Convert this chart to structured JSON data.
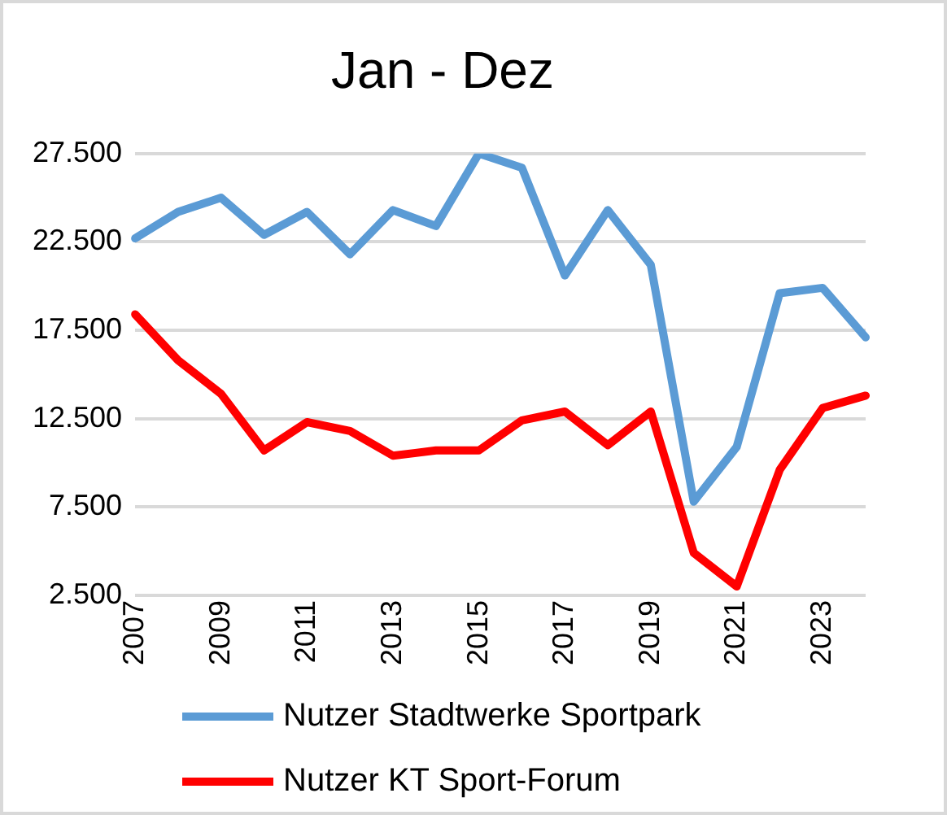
{
  "chart_data": {
    "type": "line",
    "title": "Jan - Dez",
    "categories": [
      "2007",
      null,
      "2009",
      null,
      "2011",
      null,
      "2013",
      null,
      "2015",
      null,
      "2017",
      null,
      "2019",
      null,
      "2021",
      null,
      "2023",
      null
    ],
    "series": [
      {
        "name": "Nutzer Stadtwerke Sportpark",
        "color": "#5b9bd5",
        "values": [
          22700,
          24200,
          25000,
          22900,
          24200,
          21800,
          24300,
          23400,
          27500,
          26700,
          20600,
          24300,
          21200,
          7800,
          10900,
          19600,
          19900,
          17100
        ]
      },
      {
        "name": "Nutzer KT Sport-Forum",
        "color": "#ff0000",
        "values": [
          18400,
          15800,
          13900,
          10700,
          12300,
          11800,
          10400,
          10700,
          10700,
          12400,
          12900,
          11000,
          12900,
          4900,
          3000,
          9600,
          13100,
          13800
        ]
      }
    ],
    "ylim": [
      2500,
      27500
    ],
    "yticks": [
      {
        "value": 2500,
        "label": "2.500"
      },
      {
        "value": 7500,
        "label": "7.500"
      },
      {
        "value": 12500,
        "label": "12.500"
      },
      {
        "value": 17500,
        "label": "17.500"
      },
      {
        "value": 22500,
        "label": "22.500"
      },
      {
        "value": 27500,
        "label": "27.500"
      }
    ],
    "grid": "y",
    "legend": "bottom",
    "marker": "none",
    "line_style": "solid"
  }
}
